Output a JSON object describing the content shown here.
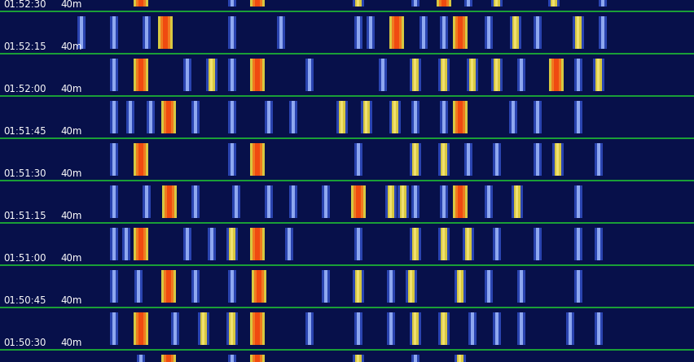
{
  "chart_data": {
    "type": "waterfall",
    "xlim": [
      0,
      853
    ],
    "tick_labels": false,
    "rows": [
      {
        "time": "01:52:30",
        "band": "40m",
        "signals": [
          [
            173,
            3
          ],
          [
            316,
            3
          ],
          [
            545,
            3
          ],
          [
            440,
            2
          ],
          [
            610,
            2
          ],
          [
            680,
            2
          ],
          [
            285,
            1
          ],
          [
            510,
            1
          ],
          [
            575,
            1
          ],
          [
            740,
            1
          ]
        ]
      },
      {
        "time": "01:52:15",
        "band": "40m",
        "signals": [
          [
            203,
            3
          ],
          [
            487,
            3
          ],
          [
            565,
            3
          ],
          [
            633,
            2
          ],
          [
            710,
            2
          ],
          [
            100,
            1
          ],
          [
            140,
            1
          ],
          [
            180,
            1
          ],
          [
            285,
            1
          ],
          [
            345,
            1
          ],
          [
            440,
            1
          ],
          [
            455,
            1
          ],
          [
            520,
            1
          ],
          [
            545,
            1
          ],
          [
            600,
            1
          ],
          [
            660,
            1
          ],
          [
            740,
            1
          ]
        ]
      },
      {
        "time": "01:52:00",
        "band": "40m",
        "signals": [
          [
            173,
            3
          ],
          [
            316,
            3
          ],
          [
            683,
            3
          ],
          [
            260,
            2
          ],
          [
            510,
            2
          ],
          [
            545,
            2
          ],
          [
            580,
            2
          ],
          [
            610,
            2
          ],
          [
            735,
            2
          ],
          [
            140,
            1
          ],
          [
            230,
            1
          ],
          [
            285,
            1
          ],
          [
            380,
            1
          ],
          [
            470,
            1
          ],
          [
            640,
            1
          ],
          [
            710,
            1
          ]
        ]
      },
      {
        "time": "01:51:45",
        "band": "40m",
        "signals": [
          [
            207,
            3
          ],
          [
            565,
            3
          ],
          [
            485,
            2
          ],
          [
            450,
            2
          ],
          [
            420,
            2
          ],
          [
            140,
            1
          ],
          [
            160,
            1
          ],
          [
            185,
            1
          ],
          [
            240,
            1
          ],
          [
            285,
            1
          ],
          [
            330,
            1
          ],
          [
            360,
            1
          ],
          [
            510,
            1
          ],
          [
            545,
            1
          ],
          [
            630,
            1
          ],
          [
            660,
            1
          ],
          [
            710,
            1
          ]
        ]
      },
      {
        "time": "01:51:30",
        "band": "40m",
        "signals": [
          [
            173,
            3
          ],
          [
            316,
            3
          ],
          [
            510,
            2
          ],
          [
            685,
            2
          ],
          [
            545,
            2
          ],
          [
            140,
            1
          ],
          [
            285,
            1
          ],
          [
            440,
            1
          ],
          [
            575,
            1
          ],
          [
            610,
            1
          ],
          [
            660,
            1
          ],
          [
            735,
            1
          ]
        ]
      },
      {
        "time": "01:51:15",
        "band": "40m",
        "signals": [
          [
            208,
            3
          ],
          [
            440,
            3
          ],
          [
            565,
            3
          ],
          [
            480,
            2
          ],
          [
            495,
            2
          ],
          [
            635,
            2
          ],
          [
            140,
            1
          ],
          [
            180,
            1
          ],
          [
            240,
            1
          ],
          [
            290,
            1
          ],
          [
            330,
            1
          ],
          [
            360,
            1
          ],
          [
            400,
            1
          ],
          [
            510,
            1
          ],
          [
            545,
            1
          ],
          [
            600,
            1
          ],
          [
            710,
            1
          ]
        ]
      },
      {
        "time": "01:51:00",
        "band": "40m",
        "signals": [
          [
            173,
            3
          ],
          [
            316,
            3
          ],
          [
            285,
            2
          ],
          [
            510,
            2
          ],
          [
            545,
            2
          ],
          [
            575,
            2
          ],
          [
            140,
            1
          ],
          [
            155,
            1
          ],
          [
            230,
            1
          ],
          [
            260,
            1
          ],
          [
            355,
            1
          ],
          [
            440,
            1
          ],
          [
            610,
            1
          ],
          [
            660,
            1
          ],
          [
            710,
            1
          ],
          [
            735,
            1
          ]
        ]
      },
      {
        "time": "01:50:45",
        "band": "40m",
        "signals": [
          [
            207,
            3
          ],
          [
            318,
            3
          ],
          [
            440,
            2
          ],
          [
            565,
            2
          ],
          [
            505,
            2
          ],
          [
            140,
            1
          ],
          [
            170,
            1
          ],
          [
            240,
            1
          ],
          [
            285,
            1
          ],
          [
            400,
            1
          ],
          [
            480,
            1
          ],
          [
            600,
            1
          ],
          [
            640,
            1
          ],
          [
            710,
            1
          ]
        ]
      },
      {
        "time": "01:50:30",
        "band": "40m",
        "signals": [
          [
            173,
            3
          ],
          [
            316,
            3
          ],
          [
            285,
            2
          ],
          [
            510,
            2
          ],
          [
            545,
            2
          ],
          [
            250,
            2
          ],
          [
            140,
            1
          ],
          [
            215,
            1
          ],
          [
            380,
            1
          ],
          [
            440,
            1
          ],
          [
            480,
            1
          ],
          [
            580,
            1
          ],
          [
            610,
            1
          ],
          [
            640,
            1
          ],
          [
            700,
            1
          ],
          [
            735,
            1
          ]
        ]
      },
      {
        "time": null,
        "band": null,
        "signals": [
          [
            316,
            3
          ],
          [
            207,
            3
          ],
          [
            440,
            2
          ],
          [
            565,
            2
          ],
          [
            173,
            1
          ],
          [
            285,
            1
          ],
          [
            510,
            1
          ]
        ]
      }
    ]
  }
}
